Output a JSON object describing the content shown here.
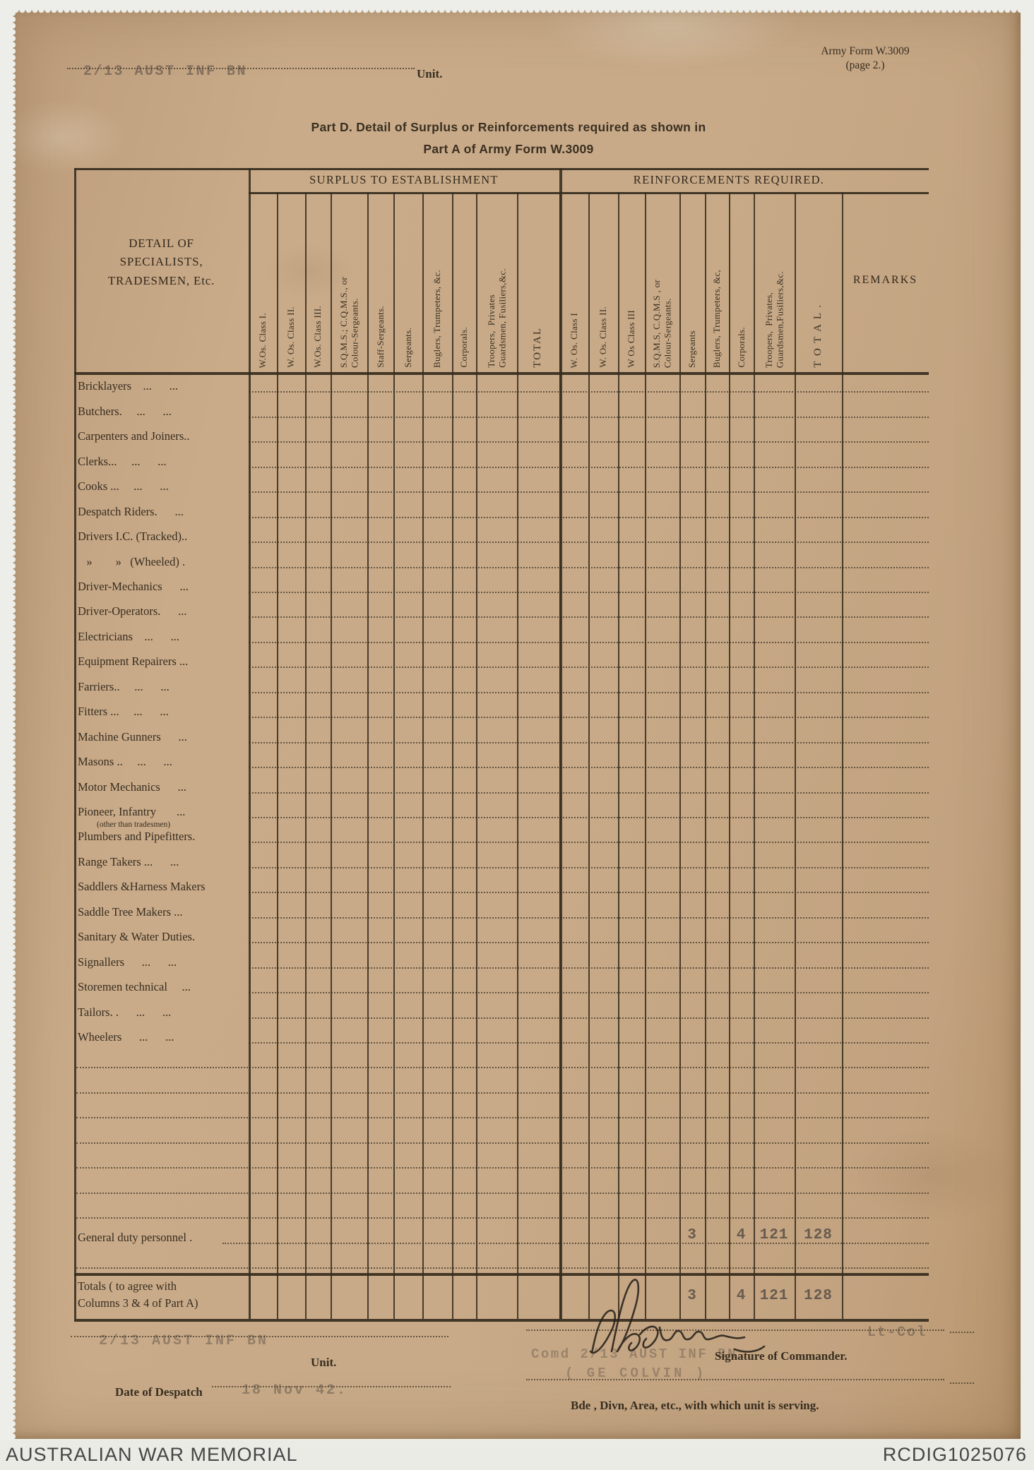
{
  "document": {
    "unit_stamp_top": "2/13 AUST INF BN",
    "unit_label_top": "Unit.",
    "form_ref_line1": "Army Form W.3009",
    "form_ref_line2": "(page 2.)",
    "title_line1": "Part D. Detail of Surplus or Reinforcements required as shown in",
    "title_line2": "Part A of Army Form W.3009"
  },
  "table": {
    "detail_header_lines": [
      "DETAIL OF",
      "SPECIALISTS,",
      "TRADESMEN, Etc."
    ],
    "remarks_header": "REMARKS",
    "groups": [
      {
        "title": "SURPLUS TO ESTABLISHMENT",
        "columns": [
          "W.Os. Class I.",
          "W. Os. Class II.",
          "W.Os. Class III.",
          "S.Q.M.S.; C.Q.M.S., or\nColour-Sergeants.",
          "Staff-Sergeants.",
          "Sergeants.",
          "Buglers, Trumpeters, &c.",
          "Corporals.",
          "Troopers,  Privates\nGuardsmen, Fusiliers,&c.",
          "TOTAL"
        ]
      },
      {
        "title": "REINFORCEMENTS REQUIRED.",
        "columns": [
          "W. Os. Class I",
          "W. Os. Class II.",
          "W Os Class III",
          "S.Q.M.S, C.Q.M.S , or\nColour-Sergeants.",
          "Sergeants",
          "Buglers, Trumpeters, &c,",
          "Corporals.",
          "Troopers,  Privates,\nGuardsmen,Fusiliers,&c.",
          "T O T A L ."
        ]
      }
    ],
    "rows": [
      {
        "label": "Bricklayers    ...      ..."
      },
      {
        "label": "Butchers.     ...      ..."
      },
      {
        "label": "Carpenters and Joiners.."
      },
      {
        "label": "Clerks...     ...      ..."
      },
      {
        "label": "Cooks ...     ...      ..."
      },
      {
        "label": "Despatch Riders.      ..."
      },
      {
        "label": "Drivers I.C. (Tracked).."
      },
      {
        "label": "   »        »   (Wheeled) ."
      },
      {
        "label": "Driver-Mechanics      ..."
      },
      {
        "label": "Driver-Operators.      ..."
      },
      {
        "label": "Electricians    ...      ..."
      },
      {
        "label": "Equipment Repairers ..."
      },
      {
        "label": "Farriers..     ...      ..."
      },
      {
        "label": "Fitters ...     ...      ..."
      },
      {
        "label": "Machine Gunners      ..."
      },
      {
        "label": "Masons ..     ...      ..."
      },
      {
        "label": "Motor Mechanics      ..."
      },
      {
        "label": "Pioneer, Infantry       ...",
        "sub": "(other than tradesmen)"
      },
      {
        "label": "Plumbers and Pipefitters."
      },
      {
        "label": "Range Takers ...      ..."
      },
      {
        "label": "Saddlers &Harness Makers"
      },
      {
        "label": "Saddle Tree Makers ..."
      },
      {
        "label": "Sanitary & Water Duties."
      },
      {
        "label": "Signallers      ...      ..."
      },
      {
        "label": "Storemen technical     ..."
      },
      {
        "label": "Tailors. .      ...      ..."
      },
      {
        "label": "Wheelers      ...      ..."
      }
    ],
    "blank_rows_after": 7,
    "general_duty": {
      "label": "General duty personnel .",
      "values": [
        "",
        "",
        "",
        "",
        "3",
        "",
        "4",
        "121",
        "128"
      ]
    },
    "totals": {
      "label_line1": "Totals ( to agree with",
      "label_line2": "Columns 3 & 4 of Part A)",
      "values": [
        "",
        "",
        "",
        "",
        "3",
        "",
        "4",
        "121",
        "128"
      ]
    }
  },
  "signature_block": {
    "unit_stamp": "2/13 AUST INF BN",
    "unit_label": "Unit.",
    "date_label": "Date of Despatch",
    "date_stamp": "18 Nov 42.",
    "rank_stamp": "Lt-Col",
    "signature_label": "Signature of Commander.",
    "commander_stamp_line1": "Comd 2/13 AUST INF BN",
    "commander_stamp_line2": "( GE  COLVIN )",
    "serving_unit_label": "Bde , Divn, Area, etc., with which unit is serving."
  },
  "archive_bar": {
    "left_text": "AUSTRALIAN WAR MEMORIAL",
    "right_text": "RCDIG1025076"
  },
  "colors": {
    "paper": "#c6a785",
    "ink": "#372d20",
    "stamp_ink": "#5c5147",
    "backing": "#edeee9",
    "bar_bg": "#ebebe6",
    "bar_text": "#454545"
  }
}
